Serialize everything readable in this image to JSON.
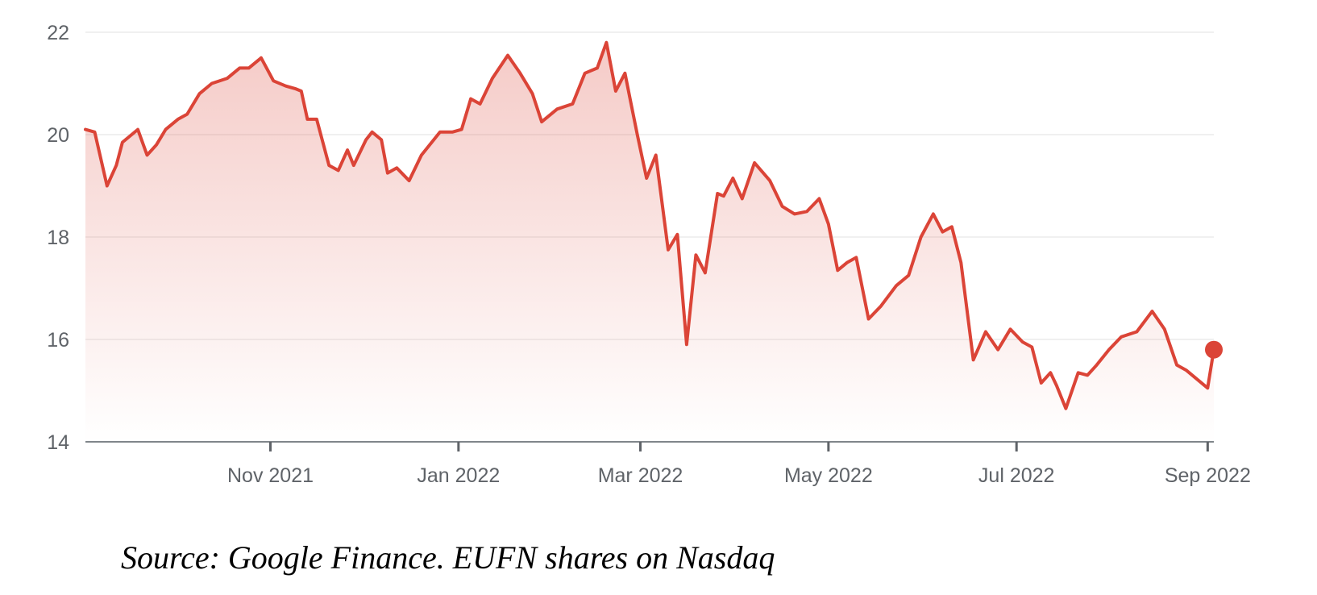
{
  "caption": "Source: Google Finance. EUFN shares on Nasdaq",
  "chart_data": {
    "type": "area",
    "title": "",
    "xlabel": "",
    "ylabel": "",
    "ylim": [
      14,
      22
    ],
    "yticks": [
      "14",
      "16",
      "18",
      "20",
      "22"
    ],
    "xticks": [
      {
        "label": "Nov 2021",
        "date": "2021-11-01"
      },
      {
        "label": "Jan 2022",
        "date": "2022-01-01"
      },
      {
        "label": "Mar 2022",
        "date": "2022-03-01"
      },
      {
        "label": "May 2022",
        "date": "2022-05-01"
      },
      {
        "label": "Jul 2022",
        "date": "2022-07-01"
      },
      {
        "label": "Sep 2022",
        "date": "2022-09-01"
      }
    ],
    "xlim": [
      "2021-09-02",
      "2022-09-03"
    ],
    "grid": true,
    "line_color": "#db4437",
    "fill_color": "#db4437",
    "series": [
      {
        "x": [
          "2021-09-02",
          "2021-09-05",
          "2021-09-09",
          "2021-09-12",
          "2021-09-14",
          "2021-09-19",
          "2021-09-22",
          "2021-09-25",
          "2021-09-28",
          "2021-10-02",
          "2021-10-05",
          "2021-10-09",
          "2021-10-13",
          "2021-10-18",
          "2021-10-22",
          "2021-10-25",
          "2021-10-29",
          "2021-11-02",
          "2021-11-06",
          "2021-11-09",
          "2021-11-11",
          "2021-11-13",
          "2021-11-16",
          "2021-11-20",
          "2021-11-23",
          "2021-11-26",
          "2021-11-28",
          "2021-12-02",
          "2021-12-04",
          "2021-12-07",
          "2021-12-09",
          "2021-12-12",
          "2021-12-16",
          "2021-12-20",
          "2021-12-26",
          "2021-12-30",
          "2022-01-02",
          "2022-01-05",
          "2022-01-08",
          "2022-01-12",
          "2022-01-17",
          "2022-01-21",
          "2022-01-25",
          "2022-01-28",
          "2022-02-02",
          "2022-02-07",
          "2022-02-11",
          "2022-02-15",
          "2022-02-18",
          "2022-02-21",
          "2022-02-24",
          "2022-02-26",
          "2022-02-28",
          "2022-03-03",
          "2022-03-06",
          "2022-03-10",
          "2022-03-13",
          "2022-03-16",
          "2022-03-19",
          "2022-03-22",
          "2022-03-26",
          "2022-03-28",
          "2022-03-31",
          "2022-04-03",
          "2022-04-07",
          "2022-04-12",
          "2022-04-16",
          "2022-04-20",
          "2022-04-24",
          "2022-04-28",
          "2022-05-01",
          "2022-05-04",
          "2022-05-07",
          "2022-05-10",
          "2022-05-14",
          "2022-05-18",
          "2022-05-23",
          "2022-05-27",
          "2022-05-31",
          "2022-06-04",
          "2022-06-07",
          "2022-06-10",
          "2022-06-13",
          "2022-06-17",
          "2022-06-21",
          "2022-06-25",
          "2022-06-29",
          "2022-07-03",
          "2022-07-06",
          "2022-07-09",
          "2022-07-12",
          "2022-07-14",
          "2022-07-17",
          "2022-07-21",
          "2022-07-24",
          "2022-07-27",
          "2022-07-31",
          "2022-08-04",
          "2022-08-09",
          "2022-08-14",
          "2022-08-18",
          "2022-08-22",
          "2022-08-25",
          "2022-08-29",
          "2022-09-01",
          "2022-09-03"
        ],
        "y": [
          20.1,
          20.05,
          19.0,
          19.4,
          19.85,
          20.1,
          19.6,
          19.8,
          20.1,
          20.3,
          20.4,
          20.8,
          21.0,
          21.1,
          21.3,
          21.3,
          21.5,
          21.05,
          20.95,
          20.9,
          20.85,
          20.3,
          20.3,
          19.4,
          19.3,
          19.7,
          19.4,
          19.9,
          20.05,
          19.9,
          19.25,
          19.35,
          19.1,
          19.6,
          20.05,
          20.05,
          20.1,
          20.7,
          20.6,
          21.1,
          21.55,
          21.2,
          20.8,
          20.25,
          20.5,
          20.6,
          21.2,
          21.3,
          21.8,
          20.85,
          21.2,
          20.6,
          20.0,
          19.15,
          19.6,
          17.75,
          18.05,
          15.9,
          17.65,
          17.3,
          18.85,
          18.8,
          19.15,
          18.75,
          19.45,
          19.1,
          18.6,
          18.45,
          18.5,
          18.75,
          18.25,
          17.35,
          17.5,
          17.6,
          16.4,
          16.65,
          17.05,
          17.25,
          18.0,
          18.45,
          18.1,
          18.2,
          17.5,
          15.6,
          16.15,
          15.8,
          16.2,
          15.95,
          15.85,
          15.15,
          15.35,
          15.1,
          14.65,
          15.35,
          15.3,
          15.5,
          15.8,
          16.05,
          16.15,
          16.55,
          16.2,
          15.5,
          15.4,
          15.2,
          15.05,
          15.8
        ]
      }
    ]
  }
}
